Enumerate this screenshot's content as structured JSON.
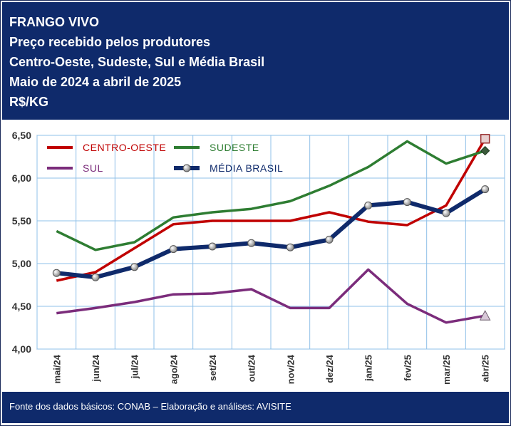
{
  "header": {
    "line1": "FRANGO VIVO",
    "line2": "Preço recebido pelos produtores",
    "line3": "Centro-Oeste, Sudeste, Sul e Média Brasil",
    "line4": "Maio de 2024 a abril de 2025",
    "line5": "R$/KG"
  },
  "footer": {
    "source": "Fonte dos dados básicos: CONAB – Elaboração e análises: AVISITE"
  },
  "chart_data": {
    "type": "line",
    "categories": [
      "mai/24",
      "jun/24",
      "jul/24",
      "ago/24",
      "set/24",
      "out/24",
      "nov/24",
      "dez/24",
      "jan/25",
      "fev/25",
      "mar/25",
      "abr/25"
    ],
    "ylim": [
      4.0,
      6.5
    ],
    "yticks": [
      "4,00",
      "4,50",
      "5,00",
      "5,50",
      "6,00",
      "6,50"
    ],
    "grid": true,
    "legend_position": "top-left",
    "series": [
      {
        "name": "CENTRO-OESTE",
        "color": "#c00000",
        "values": [
          4.8,
          4.9,
          5.18,
          5.46,
          5.5,
          5.5,
          5.5,
          5.6,
          5.49,
          5.45,
          5.68,
          6.46
        ]
      },
      {
        "name": "SUDESTE",
        "color": "#2e7d32",
        "values": [
          5.38,
          5.16,
          5.25,
          5.54,
          5.6,
          5.64,
          5.73,
          5.91,
          6.13,
          6.43,
          6.17,
          6.32
        ]
      },
      {
        "name": "SUL",
        "color": "#7b2c7b",
        "values": [
          4.42,
          4.48,
          4.55,
          4.64,
          4.65,
          4.7,
          4.48,
          4.48,
          4.93,
          4.53,
          4.31,
          4.39
        ]
      },
      {
        "name": "MÉDIA BRASIL",
        "color": "#0f2a6b",
        "values": [
          4.89,
          4.84,
          4.96,
          5.17,
          5.2,
          5.24,
          5.19,
          5.28,
          5.68,
          5.72,
          5.59,
          5.87
        ]
      }
    ]
  }
}
